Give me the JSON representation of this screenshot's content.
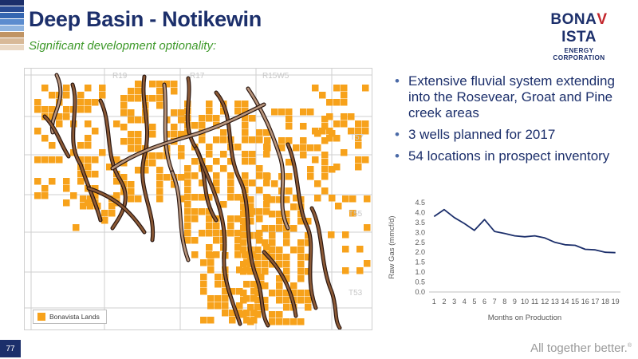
{
  "title": "Deep Basin - Notikewin",
  "subtitle": "Significant development optionality:",
  "logo": {
    "name_left": "BONA",
    "name_v": "V",
    "name_right": "ISTA",
    "sub": "ENERGY CORPORATION"
  },
  "stripe_colors": [
    "#1c2f6b",
    "#284a93",
    "#3566b1",
    "#5b8ccf",
    "#8fb4e0",
    "#c09464",
    "#d8b998",
    "#ead8c4"
  ],
  "map": {
    "range_labels": [
      "R19",
      "R17",
      "R15W5"
    ],
    "township_labels": [
      "T57",
      "T55",
      "T53"
    ],
    "legend_label": "Bonavista Lands",
    "colors": {
      "lands": "#f7a21b",
      "channel_outline": "#2b1710",
      "channel_fill": "#8c5a36",
      "channel_light": "#b9967d",
      "grid": "#cfcfcf"
    }
  },
  "bullets": [
    "Extensive fluvial system extending into the Rosevear, Groat and Pine creek areas",
    "3 wells planned for 2017",
    "54 locations in prospect inventory"
  ],
  "chart_data": {
    "type": "line",
    "title": "",
    "xlabel": "Months on Production",
    "ylabel": "Raw Gas (mmcf/d)",
    "x": [
      1,
      2,
      3,
      4,
      5,
      6,
      7,
      8,
      9,
      10,
      11,
      12,
      13,
      14,
      15,
      16,
      17,
      18,
      19
    ],
    "series": [
      {
        "values": [
          3.8,
          4.15,
          3.75,
          3.45,
          3.1,
          3.65,
          3.05,
          2.95,
          2.83,
          2.78,
          2.83,
          2.72,
          2.5,
          2.38,
          2.35,
          2.15,
          2.12,
          2.0,
          1.98
        ]
      }
    ],
    "ylim": [
      0,
      4.5
    ],
    "yticks": [
      "0.0",
      "0.5",
      "1.0",
      "1.5",
      "2.0",
      "2.5",
      "3.0",
      "3.5",
      "4.0",
      "4.5"
    ],
    "grid": false,
    "line_color": "#1c2f6b"
  },
  "page_number": "77",
  "tagline": "All together better.",
  "tagline_mark": "®"
}
